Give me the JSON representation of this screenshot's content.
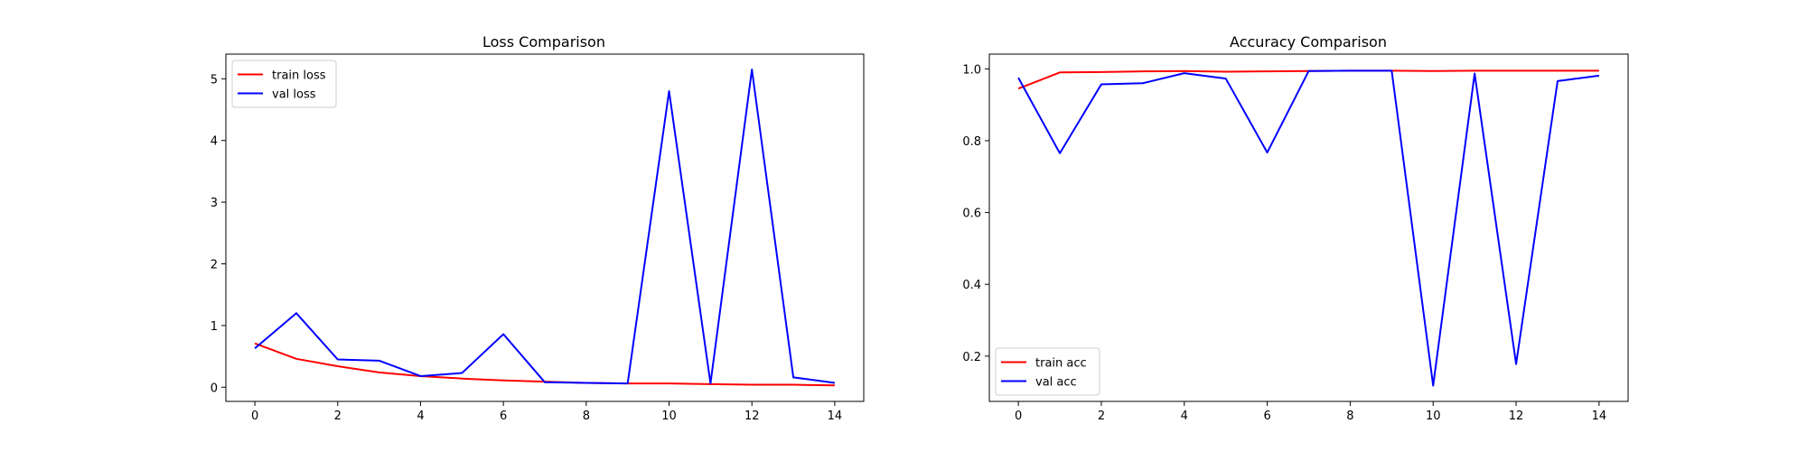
{
  "chart_data": [
    {
      "type": "line",
      "title": "Loss Comparison",
      "xlabel": "",
      "ylabel": "",
      "xlim": [
        -0.7,
        14.7
      ],
      "ylim": [
        -0.23,
        5.4
      ],
      "xticks": [
        0,
        2,
        4,
        6,
        8,
        10,
        12,
        14
      ],
      "yticks": [
        0,
        1,
        2,
        3,
        4,
        5
      ],
      "grid": false,
      "legend_position": "top-left",
      "x": [
        0,
        1,
        2,
        3,
        4,
        5,
        6,
        7,
        8,
        9,
        10,
        11,
        12,
        13,
        14
      ],
      "series": [
        {
          "name": "train loss",
          "color": "#ff0000",
          "values": [
            0.71,
            0.46,
            0.34,
            0.24,
            0.18,
            0.14,
            0.11,
            0.09,
            0.07,
            0.06,
            0.06,
            0.05,
            0.04,
            0.04,
            0.03
          ]
        },
        {
          "name": "val loss",
          "color": "#0000ff",
          "values": [
            0.63,
            1.2,
            0.45,
            0.43,
            0.18,
            0.23,
            0.86,
            0.08,
            0.07,
            0.06,
            4.8,
            0.06,
            5.15,
            0.16,
            0.07
          ]
        }
      ]
    },
    {
      "type": "line",
      "title": "Accuracy Comparison",
      "xlabel": "",
      "ylabel": "",
      "xlim": [
        -0.7,
        14.7
      ],
      "ylim": [
        0.074,
        1.041
      ],
      "xticks": [
        0,
        2,
        4,
        6,
        8,
        10,
        12,
        14
      ],
      "yticks": [
        0.2,
        0.4,
        0.6,
        0.8,
        1.0
      ],
      "ytick_labels": [
        "0.2",
        "0.4",
        "0.6",
        "0.8",
        "1.0"
      ],
      "grid": false,
      "legend_position": "bottom-left",
      "x": [
        0,
        1,
        2,
        3,
        4,
        5,
        6,
        7,
        8,
        9,
        10,
        11,
        12,
        13,
        14
      ],
      "series": [
        {
          "name": "train acc",
          "color": "#ff0000",
          "values": [
            0.945,
            0.99,
            0.991,
            0.993,
            0.994,
            0.992,
            0.993,
            0.994,
            0.995,
            0.995,
            0.994,
            0.995,
            0.995,
            0.995,
            0.995
          ]
        },
        {
          "name": "val acc",
          "color": "#0000ff",
          "values": [
            0.975,
            0.765,
            0.957,
            0.96,
            0.988,
            0.973,
            0.767,
            0.994,
            0.995,
            0.995,
            0.118,
            0.987,
            0.178,
            0.966,
            0.981
          ]
        }
      ]
    }
  ]
}
